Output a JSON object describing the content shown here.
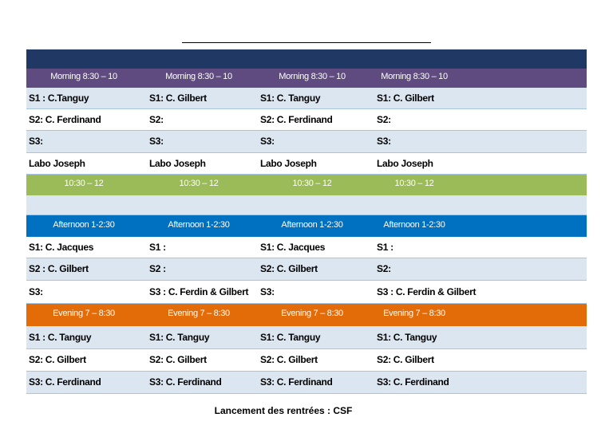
{
  "table": {
    "sections": [
      {
        "header": [
          "Morning 8:30 – 10",
          "Morning 8:30 – 10",
          "Morning 8:30 – 10",
          "Morning 8:30 – 10"
        ],
        "rows": [
          [
            "S1 : C.Tanguy",
            "S1: C. Gilbert",
            "S1: C. Tanguy",
            "S1: C. Gilbert"
          ],
          [
            "S2:   C. Ferdinand",
            "S2:",
            "S2:  C. Ferdinand",
            "S2:"
          ],
          [
            "S3:",
            "S3:",
            "S3:",
            "S3:"
          ],
          [
            "Labo Joseph",
            "Labo Joseph",
            "Labo Joseph",
            "Labo Joseph"
          ]
        ]
      },
      {
        "header": [
          "10:30 – 12",
          "10:30 – 12",
          "10:30 – 12",
          "10:30 – 12"
        ],
        "rows": []
      },
      {
        "header": [
          "Afternoon 1-2:30",
          "Afternoon 1-2:30",
          "Afternoon 1-2:30",
          "Afternoon 1-2:30"
        ],
        "rows": [
          [
            "S1: C. Jacques",
            "S1 :",
            "S1: C. Jacques",
            "S1 :"
          ],
          [
            "S2 : C. Gilbert",
            "S2 :",
            "S2: C. Gilbert",
            "S2:"
          ],
          [
            "S3:",
            "S3 :  C. Ferdin & Gilbert",
            "S3:",
            "S3 :  C. Ferdin & Gilbert"
          ]
        ]
      },
      {
        "header": [
          "Evening 7 – 8:30",
          "Evening 7 – 8:30",
          "Evening 7 – 8:30",
          "Evening 7 – 8:30"
        ],
        "rows": [
          [
            "S1 : C. Tanguy",
            "S1: C. Tanguy",
            "S1: C. Tanguy",
            "S1: C. Tanguy"
          ],
          [
            "S2:  C. Gilbert",
            "S2: C. Gilbert",
            "S2: C. Gilbert",
            "S2: C. Gilbert"
          ],
          [
            "S3:  C. Ferdinand",
            "S3: C. Ferdinand",
            "S3: C. Ferdinand",
            "S3: C. Ferdinand"
          ]
        ]
      }
    ]
  },
  "footer": "Lancement des rentrées : CSF"
}
